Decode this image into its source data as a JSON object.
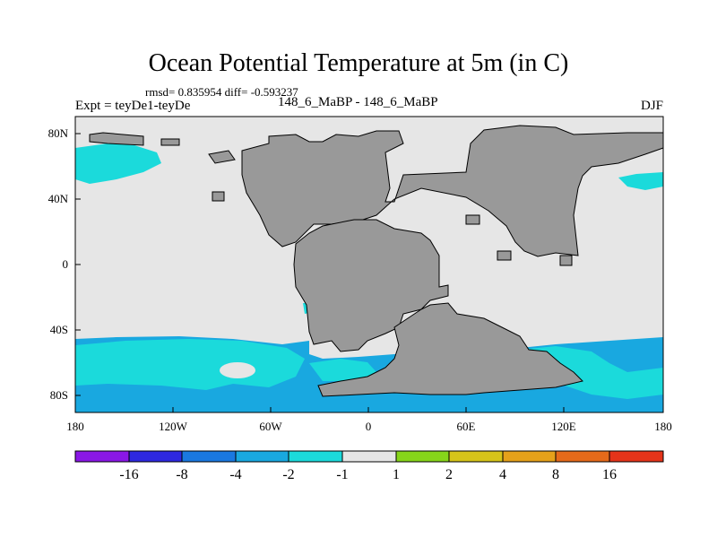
{
  "title": "Ocean Potential Temperature at 5m (in C)",
  "stats": "rmsd= 0.835954 diff= -0.593237",
  "experiment": "Expt = teyDe1-teyDe",
  "center_label": "148_6_MaBP - 148_6_MaBP",
  "season": "DJF",
  "axes": {
    "lon_ticks": [
      "180",
      "120W",
      "60W",
      "0",
      "60E",
      "120E",
      "180"
    ],
    "lat_ticks": [
      "80N",
      "40N",
      "0",
      "40S",
      "80S"
    ]
  },
  "colorbar": {
    "labels": [
      "-16",
      "-8",
      "-4",
      "-2",
      "-1",
      "1",
      "2",
      "4",
      "8",
      "16"
    ],
    "colors": [
      "#8a17e6",
      "#2e28e0",
      "#1a78e0",
      "#19a8e0",
      "#1bdadb",
      "#e6e6e6",
      "#86d51a",
      "#d6c41a",
      "#e5a11a",
      "#e56a1a",
      "#e5341a"
    ]
  },
  "palette": {
    "land": "#999999",
    "ocean_neutral": "#e6e6e6",
    "cool_light": "#1bdadb",
    "cool_mid": "#19a8e0"
  }
}
